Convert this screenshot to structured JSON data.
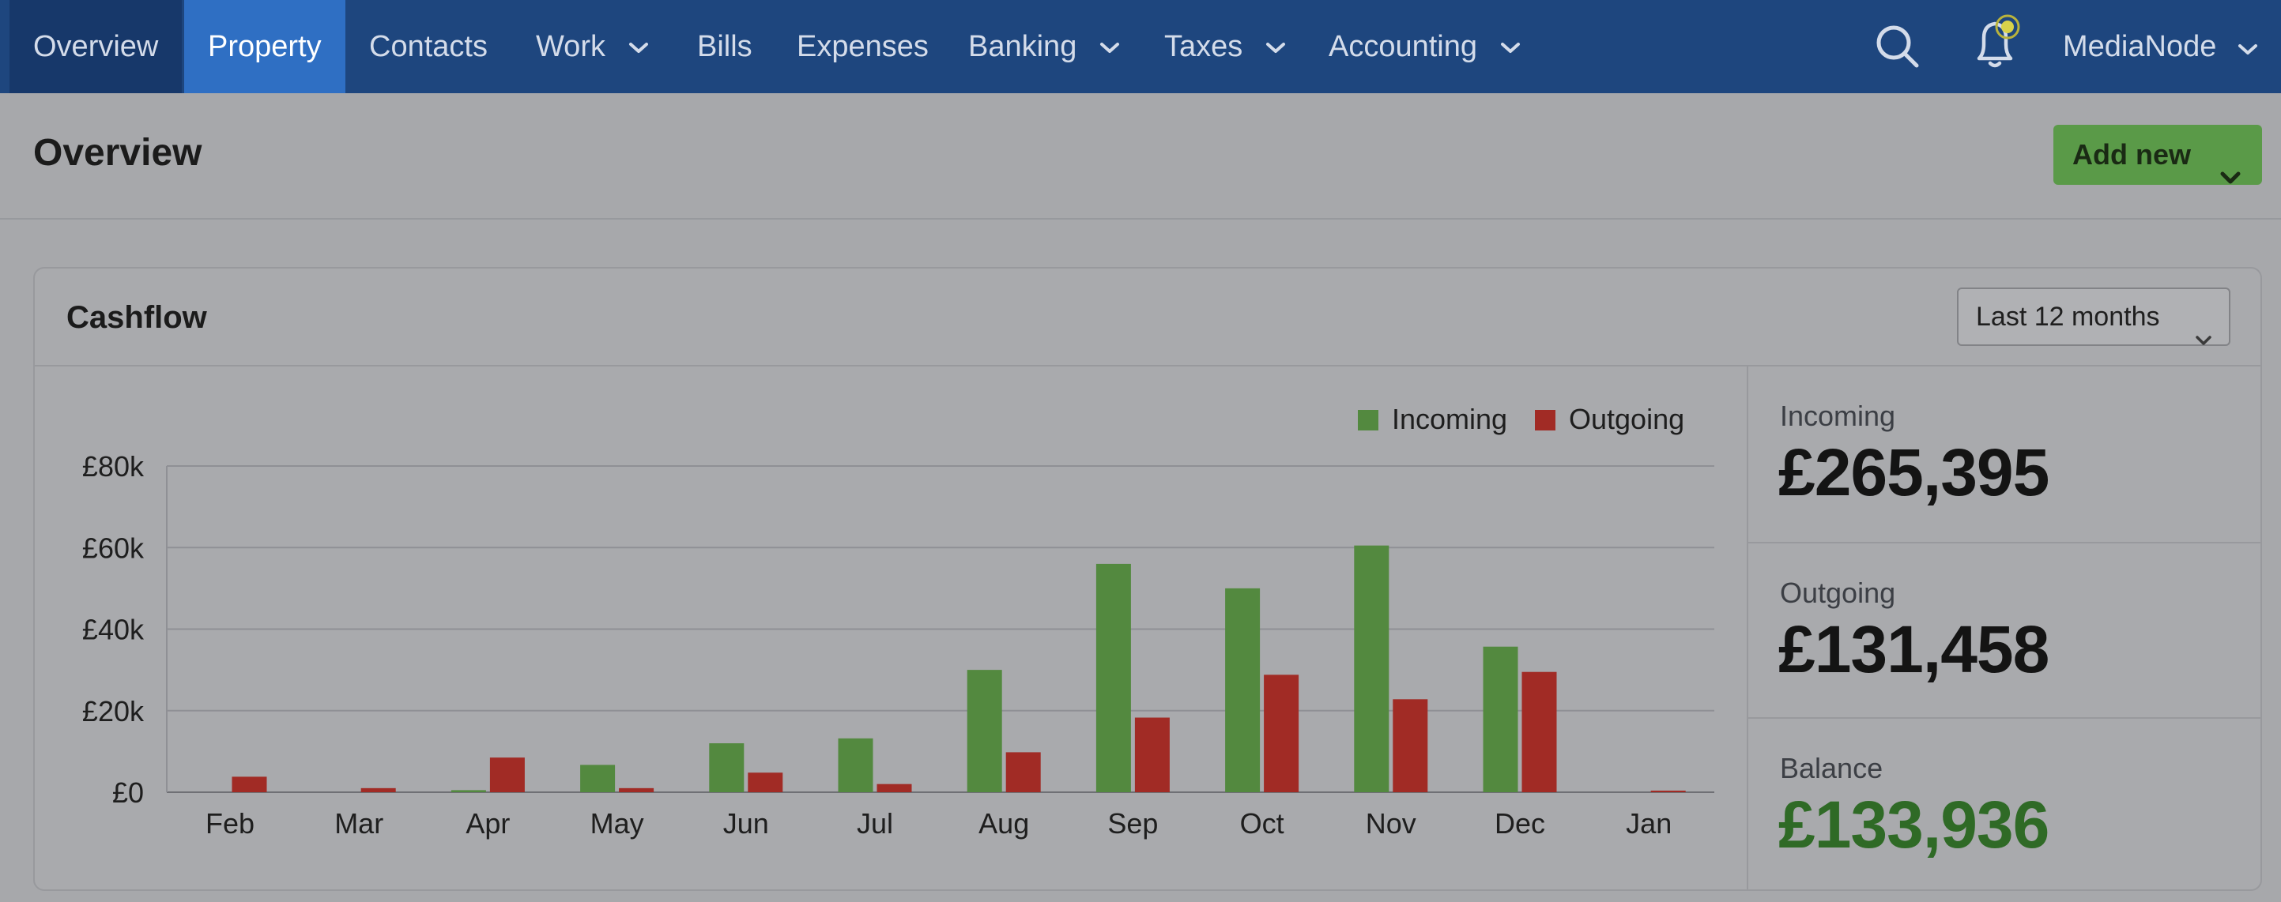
{
  "nav": {
    "items": [
      {
        "label": "Overview"
      },
      {
        "label": "Property"
      },
      {
        "label": "Contacts"
      },
      {
        "label": "Work"
      },
      {
        "label": "Bills"
      },
      {
        "label": "Expenses"
      },
      {
        "label": "Banking"
      },
      {
        "label": "Taxes"
      },
      {
        "label": "Accounting"
      }
    ],
    "search_icon": "search-icon",
    "notifications_icon": "bell-icon",
    "account_name": "MediaNode"
  },
  "page": {
    "title": "Overview",
    "add_new_label": "Add new"
  },
  "cashflow": {
    "title": "Cashflow",
    "period": "Last 12 months",
    "stats": {
      "incoming_label": "Incoming",
      "incoming_value": "£265,395",
      "outgoing_label": "Outgoing",
      "outgoing_value": "£131,458",
      "balance_label": "Balance",
      "balance_value": "£133,936"
    }
  },
  "colors": {
    "nav_bg": "#1e467e",
    "nav_active": "#2f6fc3",
    "incoming": "#53893f",
    "outgoing": "#a12b25",
    "add_button": "#5a9a48",
    "balance": "#2f6a26"
  },
  "chart_data": {
    "type": "bar",
    "title": "Cashflow",
    "categories": [
      "Feb",
      "Mar",
      "Apr",
      "May",
      "Jun",
      "Jul",
      "Aug",
      "Sep",
      "Oct",
      "Nov",
      "Dec",
      "Jan"
    ],
    "series": [
      {
        "name": "Incoming",
        "values": [
          0,
          0,
          500,
          6700,
          12000,
          13200,
          30000,
          56000,
          50000,
          60500,
          35700,
          0
        ]
      },
      {
        "name": "Outgoing",
        "values": [
          3800,
          1000,
          8500,
          1000,
          4800,
          2000,
          9800,
          18300,
          28800,
          22800,
          29500,
          200
        ]
      }
    ],
    "ylim": [
      0,
      80000
    ],
    "yticks": [
      0,
      20000,
      40000,
      60000,
      80000
    ],
    "ytick_labels": [
      "£0",
      "£20k",
      "£40k",
      "£60k",
      "£80k"
    ],
    "xlabel": "",
    "ylabel": "",
    "legend_position": "top-right",
    "grid": true
  }
}
